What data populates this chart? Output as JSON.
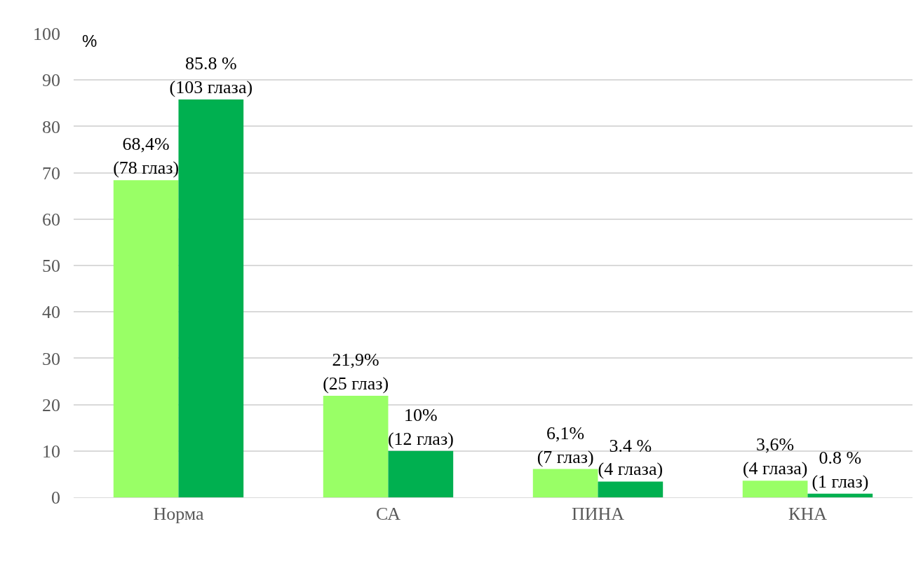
{
  "chart_data": {
    "type": "bar",
    "ylabel": "%",
    "categories": [
      "Норма",
      "СА",
      "ПИНА",
      "КНА"
    ],
    "series": [
      {
        "color": "#99ff66",
        "values": [
          68.4,
          21.9,
          6.1,
          3.6
        ],
        "value_labels": [
          "68,4%\n(78 глаз)",
          "21,9%\n(25 глаз)",
          "6,1%\n(7 глаз)",
          "3,6%\n(4 глаза)"
        ]
      },
      {
        "color": "#00b050",
        "values": [
          85.8,
          10,
          3.4,
          0.8
        ],
        "value_labels": [
          "85.8 %\n(103 глаза)",
          "10%\n(12 глаз)",
          "3.4 %\n(4 глаза)",
          "0.8 %\n(1 глаз)"
        ]
      }
    ],
    "ylim": [
      0,
      100
    ],
    "yticks": [
      0,
      10,
      20,
      30,
      40,
      50,
      60,
      70,
      80,
      90,
      100
    ],
    "grid": "y"
  }
}
